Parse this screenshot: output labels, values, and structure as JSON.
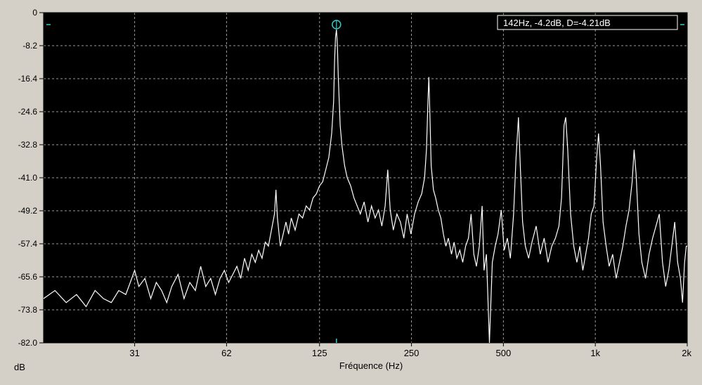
{
  "chart_data": {
    "type": "line",
    "title": "",
    "xlabel": "Fréquence (Hz)",
    "ylabel": "dB",
    "x_scale": "log",
    "xlim": [
      15.6,
      2000
    ],
    "ylim": [
      -82.0,
      0
    ],
    "x_ticks": [
      {
        "value": 31,
        "label": "31"
      },
      {
        "value": 62,
        "label": "62"
      },
      {
        "value": 125,
        "label": "125"
      },
      {
        "value": 250,
        "label": "250"
      },
      {
        "value": 500,
        "label": "500"
      },
      {
        "value": 1000,
        "label": "1k"
      },
      {
        "value": 2000,
        "label": "2k"
      }
    ],
    "y_ticks": [
      {
        "value": 0,
        "label": "0"
      },
      {
        "value": -8.2,
        "label": "-8.2"
      },
      {
        "value": -16.4,
        "label": "-16.4"
      },
      {
        "value": -24.6,
        "label": "-24.6"
      },
      {
        "value": -32.8,
        "label": "-32.8"
      },
      {
        "value": -41.0,
        "label": "-41.0"
      },
      {
        "value": -49.2,
        "label": "-49.2"
      },
      {
        "value": -57.4,
        "label": "-57.4"
      },
      {
        "value": -65.6,
        "label": "-65.6"
      },
      {
        "value": -73.8,
        "label": "-73.8"
      },
      {
        "value": -82.0,
        "label": "-82.0"
      }
    ],
    "grid": true,
    "cursor": {
      "x": 142,
      "y": -4.2,
      "label": "142Hz, -4.2dB, D=-4.21dB"
    },
    "series": [
      {
        "points": [
          [
            15.6,
            -71
          ],
          [
            17,
            -69
          ],
          [
            18.5,
            -72
          ],
          [
            20,
            -70
          ],
          [
            21.5,
            -73
          ],
          [
            23,
            -69
          ],
          [
            24.5,
            -71
          ],
          [
            26,
            -72
          ],
          [
            27.5,
            -69
          ],
          [
            29,
            -70
          ],
          [
            30,
            -67
          ],
          [
            31,
            -64
          ],
          [
            32,
            -68
          ],
          [
            33.5,
            -66
          ],
          [
            35,
            -71
          ],
          [
            36.5,
            -67
          ],
          [
            38,
            -69
          ],
          [
            39.5,
            -72
          ],
          [
            41,
            -68
          ],
          [
            43,
            -65
          ],
          [
            45,
            -71
          ],
          [
            47,
            -67
          ],
          [
            49,
            -69
          ],
          [
            51,
            -63
          ],
          [
            53,
            -68
          ],
          [
            55,
            -66
          ],
          [
            57,
            -70
          ],
          [
            59,
            -66
          ],
          [
            61,
            -64
          ],
          [
            63,
            -67
          ],
          [
            65,
            -65
          ],
          [
            67,
            -63
          ],
          [
            69,
            -66
          ],
          [
            71,
            -61
          ],
          [
            73,
            -64
          ],
          [
            75,
            -60
          ],
          [
            77,
            -62
          ],
          [
            79,
            -59
          ],
          [
            81,
            -61
          ],
          [
            83,
            -57
          ],
          [
            85,
            -58
          ],
          [
            87,
            -54
          ],
          [
            89,
            -50
          ],
          [
            90,
            -44
          ],
          [
            91,
            -51
          ],
          [
            93,
            -58
          ],
          [
            95,
            -55
          ],
          [
            97,
            -52
          ],
          [
            99,
            -55
          ],
          [
            101,
            -51
          ],
          [
            104,
            -54
          ],
          [
            107,
            -50
          ],
          [
            110,
            -51
          ],
          [
            113,
            -48
          ],
          [
            116,
            -49
          ],
          [
            119,
            -46
          ],
          [
            122,
            -45
          ],
          [
            125,
            -43
          ],
          [
            128,
            -42
          ],
          [
            131,
            -39
          ],
          [
            134,
            -36
          ],
          [
            137,
            -30
          ],
          [
            139,
            -22
          ],
          [
            140,
            -12
          ],
          [
            141,
            -6
          ],
          [
            142,
            -4.2
          ],
          [
            143,
            -8
          ],
          [
            144,
            -16
          ],
          [
            146,
            -28
          ],
          [
            148,
            -33
          ],
          [
            151,
            -38
          ],
          [
            154,
            -41
          ],
          [
            158,
            -43
          ],
          [
            162,
            -46
          ],
          [
            166,
            -48
          ],
          [
            170,
            -50
          ],
          [
            175,
            -47
          ],
          [
            180,
            -52
          ],
          [
            185,
            -48
          ],
          [
            190,
            -51
          ],
          [
            195,
            -49
          ],
          [
            200,
            -53
          ],
          [
            205,
            -48
          ],
          [
            209,
            -39
          ],
          [
            213,
            -49
          ],
          [
            218,
            -54
          ],
          [
            224,
            -50
          ],
          [
            230,
            -52
          ],
          [
            236,
            -56
          ],
          [
            242,
            -50
          ],
          [
            249,
            -55
          ],
          [
            256,
            -50
          ],
          [
            263,
            -47
          ],
          [
            270,
            -45
          ],
          [
            276,
            -41
          ],
          [
            280,
            -34
          ],
          [
            283,
            -22
          ],
          [
            285,
            -16
          ],
          [
            287,
            -24
          ],
          [
            290,
            -38
          ],
          [
            295,
            -44
          ],
          [
            300,
            -46
          ],
          [
            306,
            -49
          ],
          [
            312,
            -51
          ],
          [
            318,
            -55
          ],
          [
            324,
            -58
          ],
          [
            330,
            -56
          ],
          [
            338,
            -60
          ],
          [
            345,
            -57
          ],
          [
            352,
            -61
          ],
          [
            360,
            -59
          ],
          [
            368,
            -62
          ],
          [
            376,
            -58
          ],
          [
            384,
            -56
          ],
          [
            392,
            -50
          ],
          [
            400,
            -60
          ],
          [
            408,
            -63
          ],
          [
            417,
            -58
          ],
          [
            426,
            -48
          ],
          [
            432,
            -64
          ],
          [
            440,
            -60
          ],
          [
            450,
            -82
          ],
          [
            460,
            -62
          ],
          [
            470,
            -58
          ],
          [
            480,
            -55
          ],
          [
            492,
            -49
          ],
          [
            503,
            -59
          ],
          [
            515,
            -56
          ],
          [
            527,
            -61
          ],
          [
            540,
            -50
          ],
          [
            550,
            -36
          ],
          [
            560,
            -26
          ],
          [
            568,
            -38
          ],
          [
            578,
            -52
          ],
          [
            590,
            -58
          ],
          [
            605,
            -61
          ],
          [
            620,
            -57
          ],
          [
            640,
            -53
          ],
          [
            660,
            -60
          ],
          [
            680,
            -56
          ],
          [
            700,
            -62
          ],
          [
            720,
            -58
          ],
          [
            740,
            -56
          ],
          [
            760,
            -53
          ],
          [
            775,
            -46
          ],
          [
            790,
            -28
          ],
          [
            800,
            -26
          ],
          [
            812,
            -34
          ],
          [
            830,
            -50
          ],
          [
            850,
            -58
          ],
          [
            870,
            -62
          ],
          [
            890,
            -58
          ],
          [
            910,
            -64
          ],
          [
            930,
            -60
          ],
          [
            950,
            -56
          ],
          [
            970,
            -50
          ],
          [
            990,
            -48
          ],
          [
            1010,
            -36
          ],
          [
            1025,
            -30
          ],
          [
            1040,
            -38
          ],
          [
            1060,
            -52
          ],
          [
            1085,
            -58
          ],
          [
            1110,
            -63
          ],
          [
            1140,
            -60
          ],
          [
            1170,
            -66
          ],
          [
            1200,
            -62
          ],
          [
            1230,
            -58
          ],
          [
            1260,
            -53
          ],
          [
            1290,
            -49
          ],
          [
            1320,
            -42
          ],
          [
            1340,
            -34
          ],
          [
            1360,
            -40
          ],
          [
            1390,
            -55
          ],
          [
            1420,
            -62
          ],
          [
            1460,
            -66
          ],
          [
            1500,
            -60
          ],
          [
            1540,
            -56
          ],
          [
            1580,
            -53
          ],
          [
            1620,
            -50
          ],
          [
            1660,
            -62
          ],
          [
            1700,
            -68
          ],
          [
            1740,
            -64
          ],
          [
            1780,
            -58
          ],
          [
            1820,
            -52
          ],
          [
            1860,
            -62
          ],
          [
            1900,
            -66
          ],
          [
            1930,
            -72
          ],
          [
            1960,
            -62
          ],
          [
            1985,
            -58
          ],
          [
            2000,
            -58
          ]
        ]
      }
    ]
  }
}
